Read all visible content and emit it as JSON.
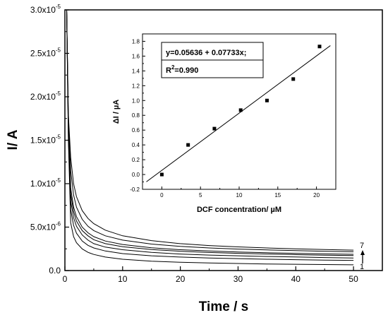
{
  "chart_data": [
    {
      "type": "line",
      "xlabel": "Time / s",
      "ylabel": "I/ A",
      "xlim": [
        0,
        55
      ],
      "ylim": [
        0,
        3e-05
      ],
      "x_ticks": [
        {
          "value": 0,
          "label": "0"
        },
        {
          "value": 10,
          "label": "10"
        },
        {
          "value": 20,
          "label": "20"
        },
        {
          "value": 30,
          "label": "30"
        },
        {
          "value": 40,
          "label": "40"
        },
        {
          "value": 50,
          "label": "50"
        }
      ],
      "y_ticks": [
        {
          "value": 0,
          "mantissa": "0.0",
          "exponent": ""
        },
        {
          "value": 5e-06,
          "mantissa": "5.0x10",
          "exponent": "-6"
        },
        {
          "value": 1e-05,
          "mantissa": "1.0x10",
          "exponent": "-5"
        },
        {
          "value": 1.5e-05,
          "mantissa": "1.5x10",
          "exponent": "-5"
        },
        {
          "value": 2e-05,
          "mantissa": "2.0x10",
          "exponent": "-5"
        },
        {
          "value": 2.5e-05,
          "mantissa": "2.5x10",
          "exponent": "-5"
        },
        {
          "value": 3e-05,
          "mantissa": "3.0x10",
          "exponent": "-5"
        }
      ],
      "x": [
        0.3,
        0.6,
        1,
        1.5,
        2,
        3,
        4,
        5,
        7,
        10,
        15,
        20,
        25,
        30,
        35,
        40,
        45,
        50
      ],
      "series": [
        {
          "values": [
            3e-05,
            1.5e-05,
            5.5e-06,
            3.9e-06,
            3.2e-06,
            2.5e-06,
            2.1e-06,
            1.85e-06,
            1.55e-06,
            1.3e-06,
            1.08e-06,
            9.5e-07,
            8.7e-07,
            8.1e-07,
            7.6e-07,
            7.2e-07,
            6.9e-07,
            6.6e-07
          ]
        },
        {
          "values": [
            3e-05,
            1.55e-05,
            7e-06,
            5.2e-06,
            4.3e-06,
            3.4e-06,
            2.9e-06,
            2.6e-06,
            2.25e-06,
            1.95e-06,
            1.7e-06,
            1.55e-06,
            1.45e-06,
            1.37e-06,
            1.3e-06,
            1.25e-06,
            1.2e-06,
            1.17e-06
          ]
        },
        {
          "values": [
            3e-05,
            1.6e-05,
            8e-06,
            6.1e-06,
            5.1e-06,
            4.1e-06,
            3.5e-06,
            3.1e-06,
            2.7e-06,
            2.4e-06,
            2.1e-06,
            1.9e-06,
            1.78e-06,
            1.7e-06,
            1.62e-06,
            1.56e-06,
            1.5e-06,
            1.45e-06
          ]
        },
        {
          "values": [
            3e-05,
            1.65e-05,
            8.8e-06,
            6.8e-06,
            5.7e-06,
            4.6e-06,
            4e-06,
            3.55e-06,
            3.1e-06,
            2.75e-06,
            2.42e-06,
            2.22e-06,
            2.08e-06,
            1.98e-06,
            1.9e-06,
            1.83e-06,
            1.77e-06,
            1.72e-06
          ]
        },
        {
          "values": [
            3e-05,
            1.7e-05,
            9.5e-06,
            7.3e-06,
            6.2e-06,
            5e-06,
            4.35e-06,
            3.9e-06,
            3.4e-06,
            3e-06,
            2.62e-06,
            2.4e-06,
            2.25e-06,
            2.14e-06,
            2.05e-06,
            1.98e-06,
            1.92e-06,
            1.87e-06
          ]
        },
        {
          "values": [
            3e-05,
            1.75e-05,
            1.15e-05,
            8.7e-06,
            7.3e-06,
            5.9e-06,
            5.1e-06,
            4.6e-06,
            4e-06,
            3.5e-06,
            3.05e-06,
            2.78e-06,
            2.6e-06,
            2.47e-06,
            2.37e-06,
            2.29e-06,
            2.22e-06,
            2.16e-06
          ]
        },
        {
          "values": [
            3e-05,
            1.8e-05,
            1.3e-05,
            1e-05,
            8.5e-06,
            6.9e-06,
            6e-06,
            5.4e-06,
            4.65e-06,
            4e-06,
            3.45e-06,
            3.1e-06,
            2.88e-06,
            2.72e-06,
            2.6e-06,
            2.5e-06,
            2.42e-06,
            2.35e-06
          ]
        }
      ],
      "curve_labels": {
        "top": "7",
        "bottom": "1"
      }
    },
    {
      "type": "scatter",
      "xlabel": "DCF concentration/ µM",
      "ylabel": "ΔI / µA",
      "xlim": [
        -2.5,
        22.5
      ],
      "ylim": [
        -0.2,
        1.9
      ],
      "x_ticks": [
        "0",
        "5",
        "10",
        "15",
        "20"
      ],
      "y_ticks": [
        "-0.2",
        "0.0",
        "0.2",
        "0.4",
        "0.6",
        "0.8",
        "1.0",
        "1.2",
        "1.4",
        "1.6",
        "1.8"
      ],
      "points": [
        {
          "x": 0,
          "y": 0.0
        },
        {
          "x": 3.4,
          "y": 0.4
        },
        {
          "x": 6.8,
          "y": 0.62
        },
        {
          "x": 10.2,
          "y": 0.87
        },
        {
          "x": 13.6,
          "y": 1.0
        },
        {
          "x": 17.0,
          "y": 1.29
        },
        {
          "x": 20.4,
          "y": 1.73
        }
      ],
      "fit": {
        "intercept": 0.05636,
        "slope": 0.07733
      },
      "annotation": {
        "equation": "y=0.05636 + 0.07733x;",
        "r2_prefix": "R",
        "r2_exponent": "2",
        "r2_value": "=0.990"
      }
    }
  ]
}
